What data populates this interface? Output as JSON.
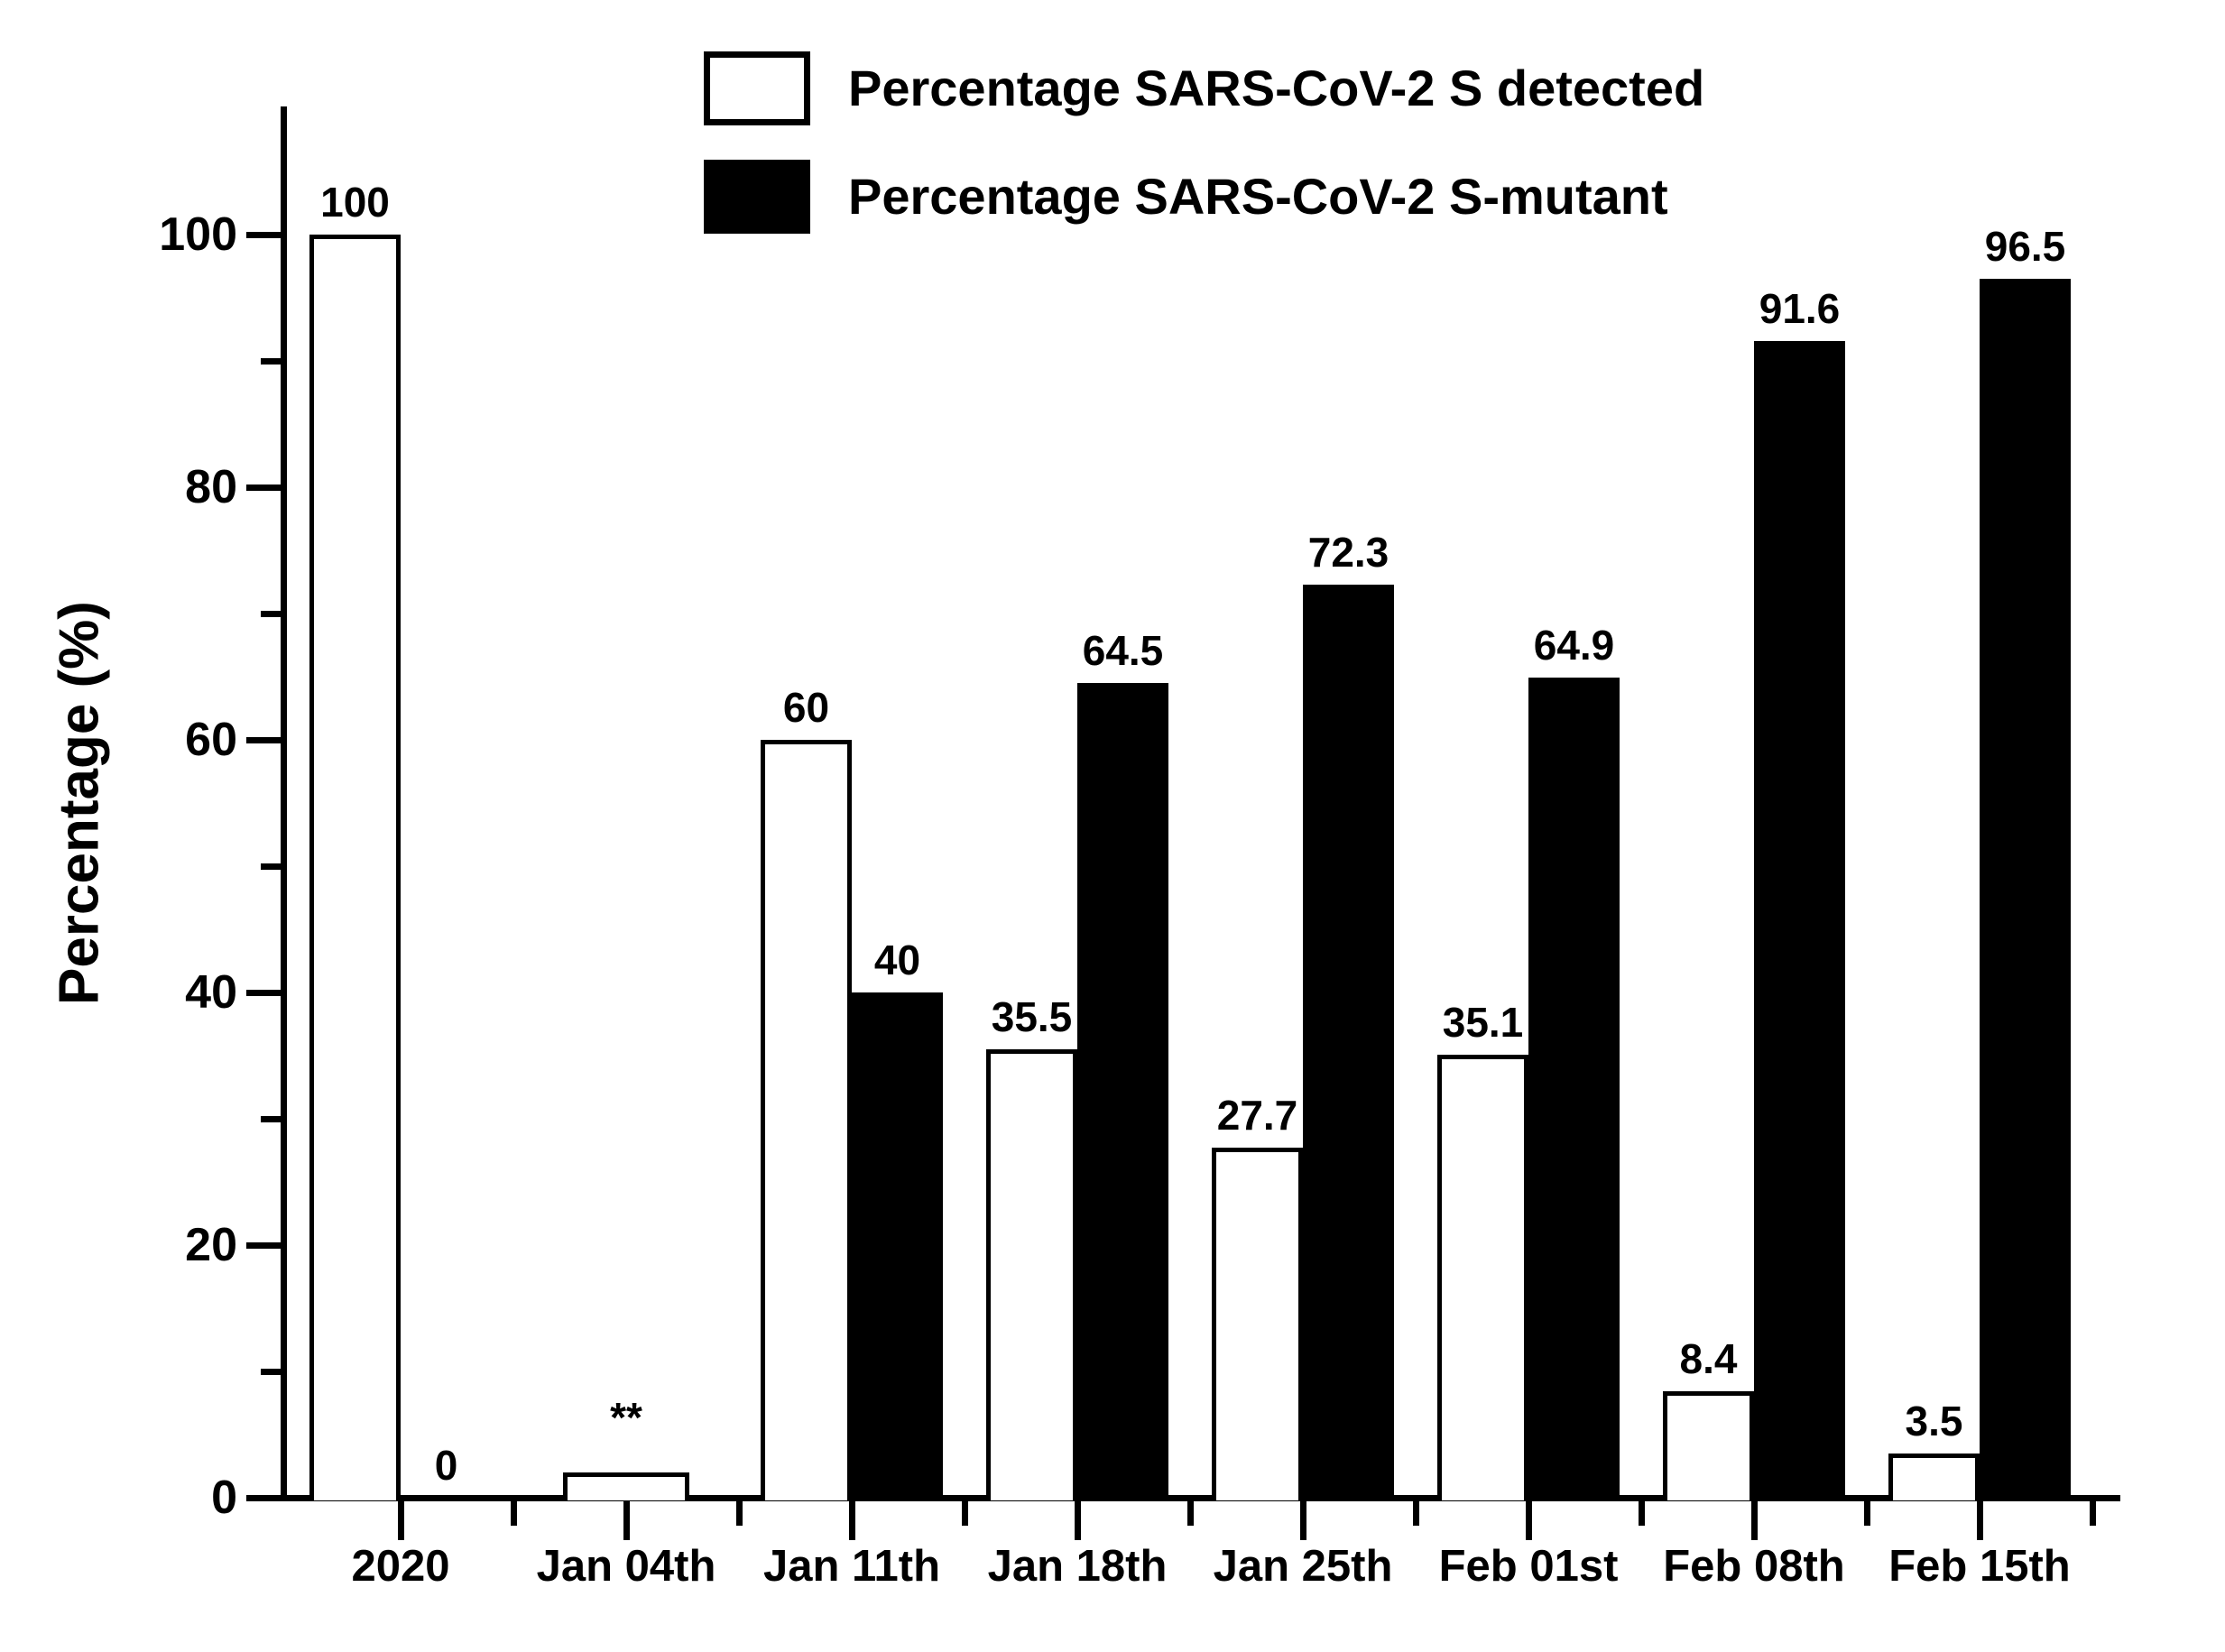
{
  "figure": {
    "background": "#ffffff",
    "foreground": "#000000"
  },
  "chart_data": {
    "type": "bar",
    "title": "",
    "xlabel": "",
    "ylabel": "Percentage (%)",
    "ylim": [
      0,
      110
    ],
    "grid": false,
    "legend_position": "top-center",
    "categories": [
      "2020",
      "Jan 04th",
      "Jan 11th",
      "Jan 18th",
      "Jan 25th",
      "Feb 01st",
      "Feb 08th",
      "Feb 15th"
    ],
    "yticks_major": [
      {
        "v": 0,
        "label": "0"
      },
      {
        "v": 20,
        "label": "20"
      },
      {
        "v": 40,
        "label": "40"
      },
      {
        "v": 60,
        "label": "60"
      },
      {
        "v": 80,
        "label": "80"
      },
      {
        "v": 100,
        "label": "100"
      }
    ],
    "yticks_minor": [
      10,
      30,
      50,
      70,
      90
    ],
    "series": [
      {
        "name": "Percentage SARS-CoV-2 S detected",
        "fill": "#ffffff",
        "stroke": "#000000",
        "points": [
          {
            "v": 100,
            "label": "100"
          },
          {
            "v": 2,
            "label": "**",
            "single_wide": true,
            "label_dy": -25
          },
          {
            "v": 60,
            "label": "60"
          },
          {
            "v": 35.5,
            "label": "35.5"
          },
          {
            "v": 27.7,
            "label": "27.7"
          },
          {
            "v": 35.1,
            "label": "35.1"
          },
          {
            "v": 8.4,
            "label": "8.4"
          },
          {
            "v": 3.5,
            "label": "3.5"
          }
        ]
      },
      {
        "name": "Percentage SARS-CoV-2 S-mutant",
        "fill": "#000000",
        "stroke": "#000000",
        "points": [
          {
            "v": 0,
            "label": "0"
          },
          {
            "v": null,
            "label": ""
          },
          {
            "v": 40,
            "label": "40"
          },
          {
            "v": 64.5,
            "label": "64.5"
          },
          {
            "v": 72.3,
            "label": "72.3"
          },
          {
            "v": 64.9,
            "label": "64.9"
          },
          {
            "v": 91.6,
            "label": "91.6"
          },
          {
            "v": 96.5,
            "label": "96.5"
          }
        ]
      }
    ]
  }
}
